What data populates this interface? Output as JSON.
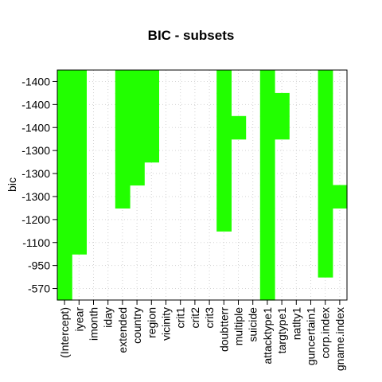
{
  "chart_data": {
    "type": "heatmap",
    "title": "BIC - subsets",
    "xlabel": "",
    "ylabel": "bic",
    "grid": true,
    "fill_color": "#22ff00",
    "variables": [
      "(Intercept)",
      "iyear",
      "imonth",
      "iday",
      "extended",
      "country",
      "region",
      "vicinity",
      "crit1",
      "crit2",
      "crit3",
      "doubtterr",
      "multiple",
      "suicide",
      "attacktype1",
      "targtype1",
      "natlty1",
      "guncertain1",
      "corp.index",
      "gname.index"
    ],
    "y_tick_labels": [
      "-1400",
      "-1400",
      "-1400",
      "-1300",
      "-1300",
      "-1300",
      "-1200",
      "-1100",
      "-950",
      "-570"
    ],
    "model_rows": [
      {
        "bic": "-1400",
        "included": [
          0,
          1,
          4,
          5,
          6,
          11,
          14,
          18
        ]
      },
      {
        "bic": "-1400",
        "included": [
          0,
          1,
          4,
          5,
          6,
          11,
          14,
          15,
          18
        ]
      },
      {
        "bic": "-1400",
        "included": [
          0,
          1,
          4,
          5,
          6,
          11,
          12,
          14,
          15,
          18
        ]
      },
      {
        "bic": "-1300",
        "included": [
          0,
          1,
          4,
          5,
          6,
          11,
          14,
          18
        ]
      },
      {
        "bic": "-1300",
        "included": [
          0,
          1,
          4,
          5,
          11,
          14,
          18
        ]
      },
      {
        "bic": "-1300",
        "included": [
          0,
          1,
          4,
          11,
          14,
          18,
          19
        ]
      },
      {
        "bic": "-1200",
        "included": [
          0,
          1,
          11,
          14,
          18
        ]
      },
      {
        "bic": "-1100",
        "included": [
          0,
          1,
          14,
          18
        ]
      },
      {
        "bic": "-950",
        "included": [
          0,
          14,
          18
        ]
      },
      {
        "bic": "-570",
        "included": [
          0,
          14
        ]
      }
    ]
  }
}
